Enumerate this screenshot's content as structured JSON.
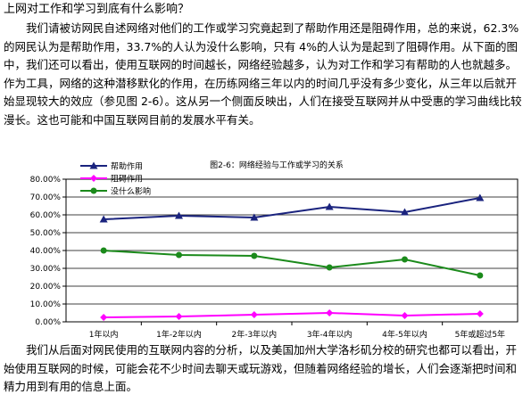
{
  "heading": "上网对工作和学习到底有什么影响？",
  "paragraph1": "我们请被访网民自述网络对他们的工作或学习究竟起到了帮助作用还是阻碍作用，总的来说，62.3%的网民认为是帮助作用，33.7%的人认为没什么影响，只有 4%的人认为是起到了阻碍作用。从下面的图中，我们还可以看出，使用互联网的时间越长，网络经验越多，认为对工作和学习有帮助的人也就越多。作为工具，网络的这种潜移默化的作用，在历练网络三年以内的时间几乎没有多少变化，从三年以后就开始显现较大的效应（参见图 2-6）。这从另一个侧面反映出，人们在接受互联网并从中受惠的学习曲线比较漫长。这也可能和中国互联网目前的发展水平有关。",
  "paragraph2": "我们从后面对网民使用的互联网内容的分析，以及美国加州大学洛杉矶分校的研究也都可以看出，开始使用互联网的时候，可能会花不少时间去聊天或玩游戏，但随着网络经验的增长，人们会逐渐把时间和精力用到有用的信息上面。",
  "chart_data": {
    "type": "line",
    "title": "图2-6：网络经验与工作或学习的关系",
    "categories": [
      "1年以内",
      "1年-2年以内",
      "2年-3年以内",
      "3年-4年以内",
      "4年-5年以内",
      "5年或超过5年"
    ],
    "ylim": [
      0,
      80
    ],
    "yticks": [
      "0.00%",
      "10.00%",
      "20.00%",
      "30.00%",
      "40.00%",
      "50.00%",
      "60.00%",
      "70.00%",
      "80.00%"
    ],
    "grid": true,
    "legend_position": "top-left",
    "series": [
      {
        "name": "帮助作用",
        "values": [
          57.5,
          59.5,
          58.5,
          64.5,
          61.5,
          69.5
        ],
        "color": "#1a237e",
        "marker": "triangle"
      },
      {
        "name": "阻碍作用",
        "values": [
          2.5,
          3.0,
          4.0,
          5.0,
          3.5,
          4.5
        ],
        "color": "#ff00ff",
        "marker": "diamond"
      },
      {
        "name": "没什么影响",
        "values": [
          40.0,
          37.5,
          37.0,
          30.5,
          35.0,
          26.0
        ],
        "color": "#1b8a1b",
        "marker": "circle"
      }
    ]
  }
}
